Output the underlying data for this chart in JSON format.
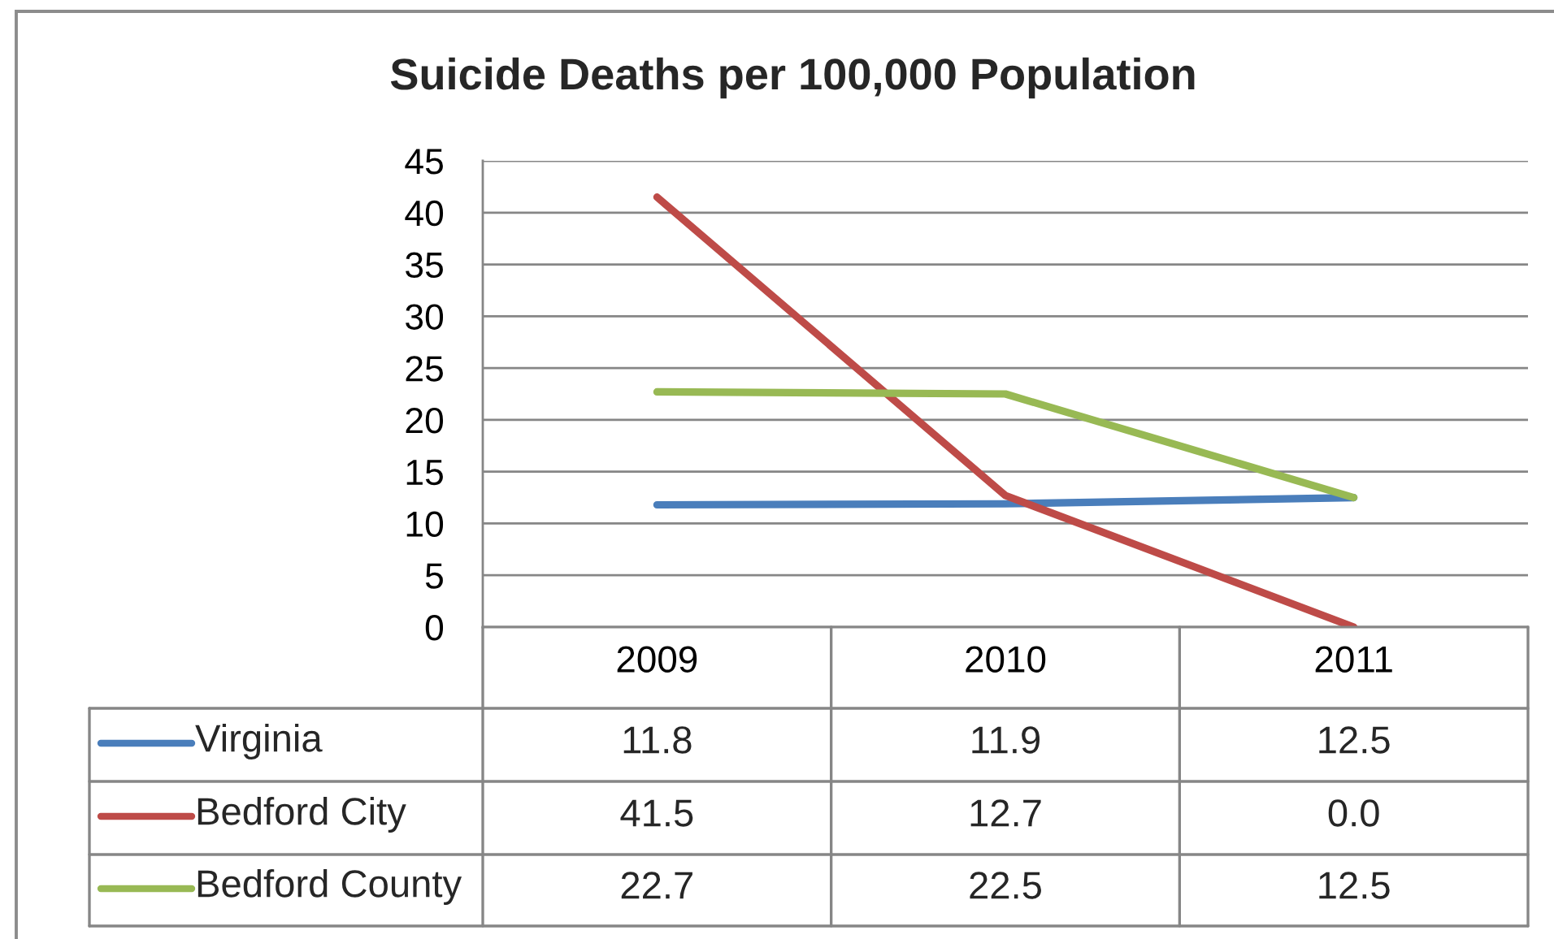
{
  "chart_data": {
    "type": "line",
    "title": "Suicide Deaths per 100,000 Population",
    "categories": [
      "2009",
      "2010",
      "2011"
    ],
    "series": [
      {
        "name": "Virginia",
        "color": "#4a7ebb",
        "values": [
          11.8,
          11.9,
          12.5
        ],
        "value_labels": [
          "11.8",
          "11.9",
          "12.5"
        ]
      },
      {
        "name": "Bedford City",
        "color": "#be4b48",
        "values": [
          41.5,
          12.7,
          0.0
        ],
        "value_labels": [
          "41.5",
          "12.7",
          "0.0"
        ]
      },
      {
        "name": "Bedford County",
        "color": "#98b954",
        "values": [
          22.7,
          22.5,
          12.5
        ],
        "value_labels": [
          "22.7",
          "22.5",
          "12.5"
        ]
      }
    ],
    "ylim": [
      0,
      45
    ],
    "yticks": [
      0,
      5,
      10,
      15,
      20,
      25,
      30,
      35,
      40,
      45
    ],
    "grid": "y",
    "legend": "bottom",
    "marker": "none",
    "line_style": "solid"
  }
}
